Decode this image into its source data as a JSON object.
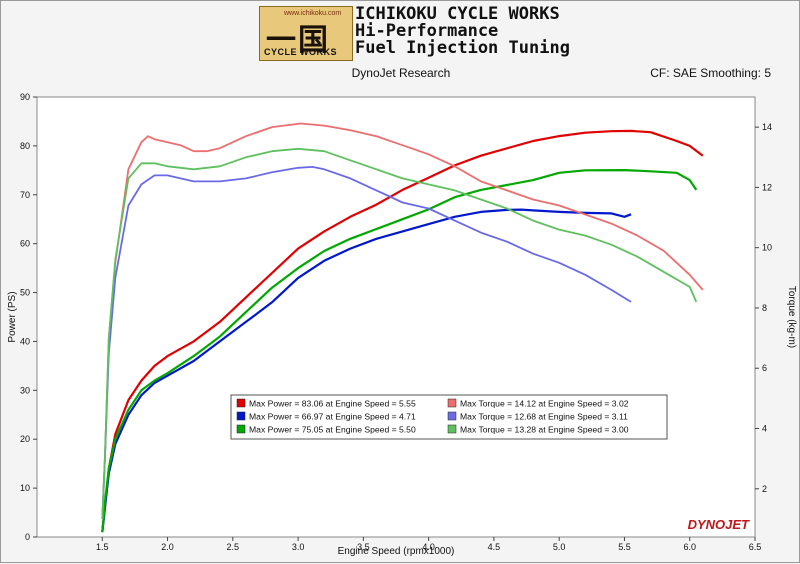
{
  "header": {
    "brand_line1": "ICHIKOKU CYCLE WORKS",
    "brand_line2": "Hi-Performance",
    "brand_line3": "Fuel Injection Tuning",
    "logo_kanji": "一国",
    "logo_site": "www.ichikoku.com",
    "logo_sub": "CYCLE WORKS",
    "center": "DynoJet Research",
    "right": "CF: SAE Smoothing: 5"
  },
  "watermark": "DYNOJET",
  "colors": {
    "red": "#e00000",
    "red_light": "#ec6e6e",
    "blue": "#0018cc",
    "blue_light": "#6a6ae8",
    "green": "#00a800",
    "green_light": "#5ec05e"
  },
  "chart_data": {
    "type": "line",
    "xlabel": "Engine Speed (rpmx1000)",
    "ylabel": "Power (PS)",
    "y2label": "Torque (kg-m)",
    "xlim": [
      1.0,
      6.5
    ],
    "ylim": [
      0,
      90
    ],
    "y2lim": [
      0.4,
      15.0
    ],
    "xticks": [
      "1.5",
      "2.0",
      "2.5",
      "3.0",
      "3.5",
      "4.0",
      "4.5",
      "5.0",
      "5.5",
      "6.0",
      "6.5"
    ],
    "yticks": [
      "0",
      "10",
      "20",
      "30",
      "40",
      "50",
      "60",
      "70",
      "80",
      "90"
    ],
    "y2ticks": [
      "2",
      "4",
      "6",
      "8",
      "10",
      "12",
      "14"
    ],
    "grid": false,
    "legend_position": "center",
    "legend": [
      {
        "text": "Max Power = 83.06 at Engine Speed = 5.55",
        "color": "#e00000"
      },
      {
        "text": "Max Torque = 14.12 at Engine Speed = 3.02",
        "color": "#ec6e6e"
      },
      {
        "text": "Max Power = 66.97 at Engine Speed = 4.71",
        "color": "#0018cc"
      },
      {
        "text": "Max Torque = 12.68 at Engine Speed = 3.11",
        "color": "#6a6ae8"
      },
      {
        "text": "Max Power = 75.05 at Engine Speed = 5.50",
        "color": "#00a800"
      },
      {
        "text": "Max Torque = 13.28 at Engine Speed = 3.00",
        "color": "#5ec05e"
      }
    ],
    "series": [
      {
        "axis": "left",
        "color": "#e00000",
        "width": 2.2,
        "x": [
          1.5,
          1.52,
          1.55,
          1.6,
          1.7,
          1.8,
          1.9,
          2.0,
          2.2,
          2.4,
          2.6,
          2.8,
          3.0,
          3.2,
          3.4,
          3.6,
          3.8,
          4.0,
          4.2,
          4.4,
          4.6,
          4.8,
          5.0,
          5.2,
          5.4,
          5.55,
          5.7,
          5.9,
          6.0,
          6.1
        ],
        "y": [
          1,
          6,
          14,
          21,
          28,
          32,
          35,
          37,
          40,
          44,
          49,
          54,
          59,
          62.5,
          65.5,
          68,
          71,
          73.5,
          76,
          78,
          79.5,
          81,
          82,
          82.7,
          83,
          83.06,
          82.8,
          81,
          80,
          78
        ]
      },
      {
        "axis": "left",
        "color": "#0018cc",
        "width": 2.2,
        "x": [
          1.5,
          1.52,
          1.55,
          1.6,
          1.7,
          1.8,
          1.9,
          2.0,
          2.2,
          2.4,
          2.6,
          2.8,
          3.0,
          3.2,
          3.4,
          3.6,
          3.8,
          4.0,
          4.2,
          4.4,
          4.6,
          4.71,
          4.8,
          5.0,
          5.2,
          5.4,
          5.5,
          5.55
        ],
        "y": [
          1,
          6,
          13,
          19,
          25,
          29,
          31.5,
          33,
          36,
          40,
          44,
          48,
          53,
          56.5,
          59,
          61,
          62.5,
          64,
          65.5,
          66.5,
          66.9,
          66.97,
          66.8,
          66.5,
          66.3,
          66.2,
          65.5,
          66
        ]
      },
      {
        "axis": "left",
        "color": "#00a800",
        "width": 2.2,
        "x": [
          1.5,
          1.52,
          1.55,
          1.6,
          1.7,
          1.8,
          1.9,
          2.0,
          2.2,
          2.4,
          2.6,
          2.8,
          3.0,
          3.2,
          3.4,
          3.6,
          3.8,
          4.0,
          4.2,
          4.4,
          4.6,
          4.8,
          5.0,
          5.2,
          5.5,
          5.7,
          5.9,
          6.0,
          6.05
        ],
        "y": [
          1,
          7,
          14,
          20,
          26,
          30,
          32,
          33.5,
          37,
          41,
          46,
          51,
          55,
          58.5,
          61,
          63,
          65,
          67,
          69.5,
          71,
          72,
          73,
          74.5,
          75,
          75.05,
          74.8,
          74.5,
          73,
          71
        ]
      },
      {
        "axis": "right",
        "color": "#ec6e6e",
        "width": 1.8,
        "x": [
          1.5,
          1.52,
          1.55,
          1.6,
          1.7,
          1.8,
          1.85,
          1.9,
          2.0,
          2.1,
          2.2,
          2.3,
          2.4,
          2.6,
          2.8,
          3.02,
          3.2,
          3.4,
          3.6,
          3.8,
          4.0,
          4.2,
          4.4,
          4.6,
          4.8,
          5.0,
          5.2,
          5.4,
          5.6,
          5.8,
          6.0,
          6.1
        ],
        "y": [
          1,
          3,
          7,
          9.5,
          12.6,
          13.5,
          13.7,
          13.6,
          13.5,
          13.4,
          13.2,
          13.2,
          13.3,
          13.7,
          14.0,
          14.12,
          14.05,
          13.9,
          13.7,
          13.4,
          13.1,
          12.7,
          12.2,
          11.9,
          11.6,
          11.4,
          11.1,
          10.8,
          10.4,
          9.9,
          9.1,
          8.6
        ]
      },
      {
        "axis": "right",
        "color": "#6a6ae8",
        "width": 1.8,
        "x": [
          1.5,
          1.52,
          1.55,
          1.6,
          1.7,
          1.8,
          1.9,
          2.0,
          2.2,
          2.4,
          2.6,
          2.8,
          3.0,
          3.11,
          3.2,
          3.4,
          3.6,
          3.8,
          4.0,
          4.2,
          4.4,
          4.6,
          4.8,
          5.0,
          5.2,
          5.4,
          5.55
        ],
        "y": [
          1,
          3,
          6.5,
          9,
          11.4,
          12.1,
          12.4,
          12.4,
          12.2,
          12.2,
          12.3,
          12.5,
          12.65,
          12.68,
          12.6,
          12.3,
          11.9,
          11.5,
          11.3,
          10.9,
          10.5,
          10.2,
          9.8,
          9.5,
          9.1,
          8.6,
          8.2
        ]
      },
      {
        "axis": "right",
        "color": "#5ec05e",
        "width": 1.8,
        "x": [
          1.5,
          1.52,
          1.55,
          1.6,
          1.7,
          1.8,
          1.9,
          2.0,
          2.2,
          2.4,
          2.6,
          2.8,
          3.0,
          3.2,
          3.4,
          3.6,
          3.8,
          4.0,
          4.2,
          4.4,
          4.6,
          4.8,
          5.0,
          5.2,
          5.4,
          5.6,
          5.8,
          6.0,
          6.05
        ],
        "y": [
          1,
          3,
          7,
          9.6,
          12.3,
          12.8,
          12.8,
          12.7,
          12.6,
          12.7,
          13.0,
          13.2,
          13.28,
          13.2,
          12.9,
          12.6,
          12.3,
          12.1,
          11.9,
          11.6,
          11.3,
          10.9,
          10.6,
          10.4,
          10.1,
          9.7,
          9.2,
          8.7,
          8.2
        ]
      }
    ]
  }
}
